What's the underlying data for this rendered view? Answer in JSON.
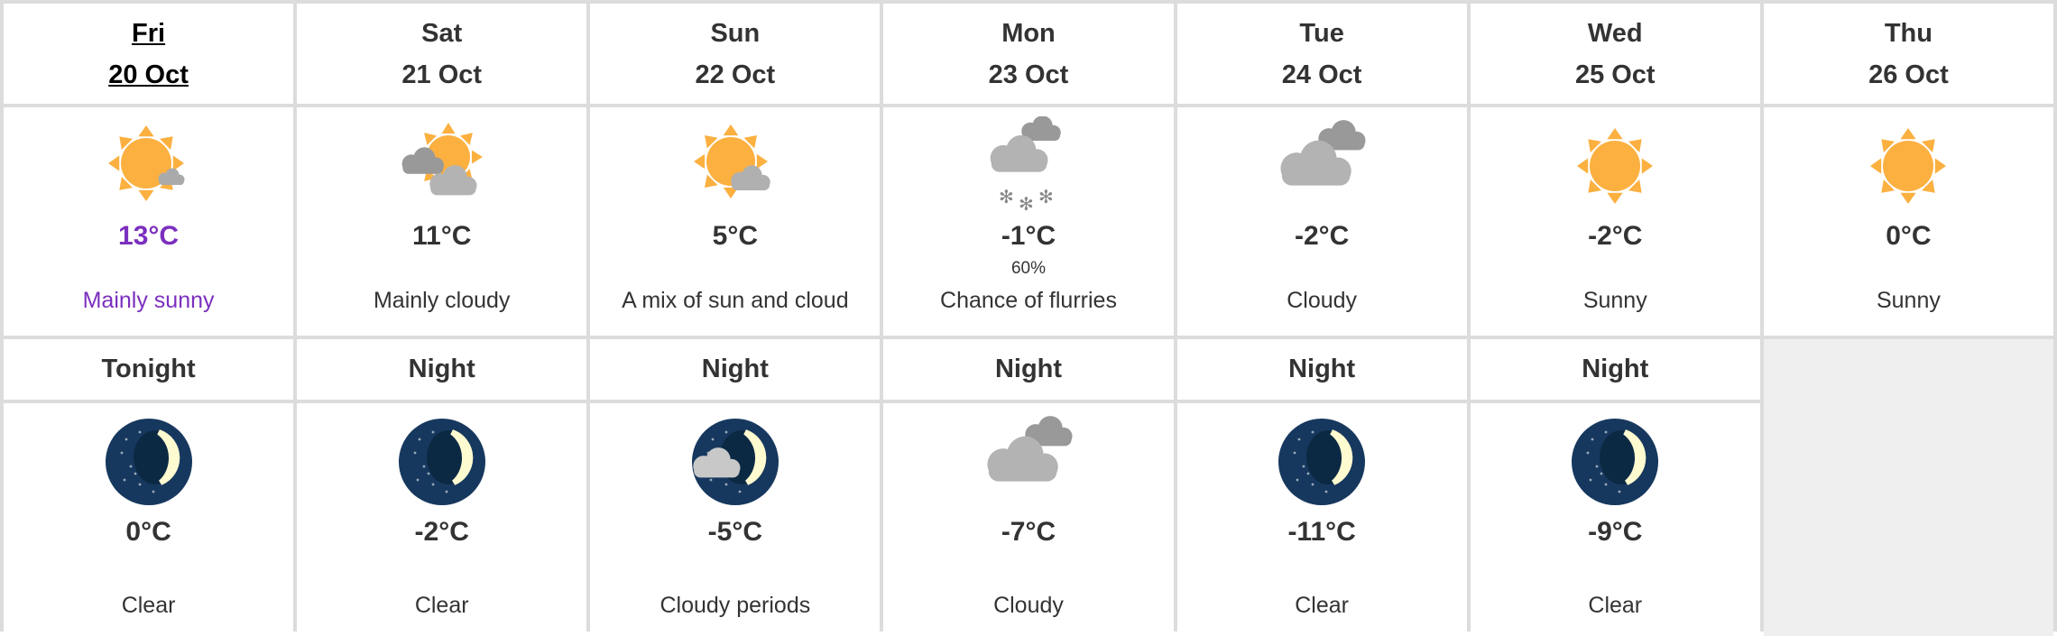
{
  "accent_color": "#7b2fbe",
  "days": [
    {
      "day": "Fri",
      "date": "20 Oct",
      "icon": "sun-small-cloud-icon",
      "temp": "13°C",
      "pop": "",
      "desc": "Mainly sunny",
      "today": true
    },
    {
      "day": "Sat",
      "date": "21 Oct",
      "icon": "sun-behind-clouds-icon",
      "temp": "11°C",
      "pop": "",
      "desc": "Mainly cloudy"
    },
    {
      "day": "Sun",
      "date": "22 Oct",
      "icon": "sun-cloud-icon",
      "temp": "5°C",
      "pop": "",
      "desc": "A mix of sun and cloud"
    },
    {
      "day": "Mon",
      "date": "23 Oct",
      "icon": "cloud-snow-icon",
      "temp": "-1°C",
      "pop": "60%",
      "desc": "Chance of flurries"
    },
    {
      "day": "Tue",
      "date": "24 Oct",
      "icon": "cloudy-icon",
      "temp": "-2°C",
      "pop": "",
      "desc": "Cloudy"
    },
    {
      "day": "Wed",
      "date": "25 Oct",
      "icon": "sun-icon",
      "temp": "-2°C",
      "pop": "",
      "desc": "Sunny"
    },
    {
      "day": "Thu",
      "date": "26 Oct",
      "icon": "sun-icon",
      "temp": "0°C",
      "pop": "",
      "desc": "Sunny"
    }
  ],
  "nights": [
    {
      "label": "Tonight",
      "icon": "moon-clear-icon",
      "temp": "0°C",
      "desc": "Clear"
    },
    {
      "label": "Night",
      "icon": "moon-clear-icon",
      "temp": "-2°C",
      "desc": "Clear"
    },
    {
      "label": "Night",
      "icon": "moon-cloud-icon",
      "temp": "-5°C",
      "desc": "Cloudy periods"
    },
    {
      "label": "Night",
      "icon": "cloudy-icon",
      "temp": "-7°C",
      "desc": "Cloudy"
    },
    {
      "label": "Night",
      "icon": "moon-clear-icon",
      "temp": "-11°C",
      "desc": "Clear"
    },
    {
      "label": "Night",
      "icon": "moon-clear-icon",
      "temp": "-9°C",
      "desc": "Clear"
    }
  ]
}
